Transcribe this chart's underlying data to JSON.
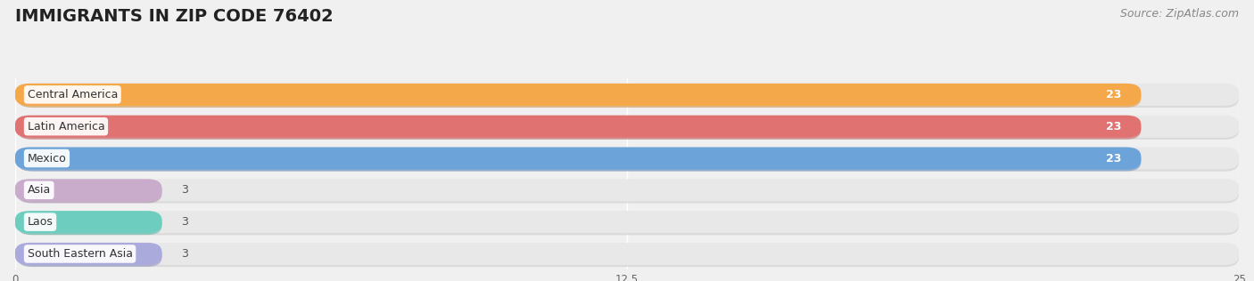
{
  "title": "IMMIGRANTS IN ZIP CODE 76402",
  "source": "Source: ZipAtlas.com",
  "categories": [
    "Central America",
    "Latin America",
    "Mexico",
    "Asia",
    "Laos",
    "South Eastern Asia"
  ],
  "values": [
    23,
    23,
    23,
    3,
    3,
    3
  ],
  "bar_colors": [
    "#F5A84A",
    "#E07272",
    "#6CA3D8",
    "#C9ABCC",
    "#6DCEC0",
    "#AAAADD"
  ],
  "bar_shadow_colors": [
    "#E09030",
    "#C85050",
    "#4A80C0",
    "#A882AA",
    "#44B0A0",
    "#8888BB"
  ],
  "xlim": [
    0,
    25
  ],
  "xticks": [
    0,
    12.5,
    25
  ],
  "background_color": "#f0f0f0",
  "bar_bg_color": "#e8e8e8",
  "bar_bg_shadow": "#d0d0d0",
  "title_fontsize": 14,
  "source_fontsize": 9,
  "label_fontsize": 9,
  "value_fontsize": 9
}
